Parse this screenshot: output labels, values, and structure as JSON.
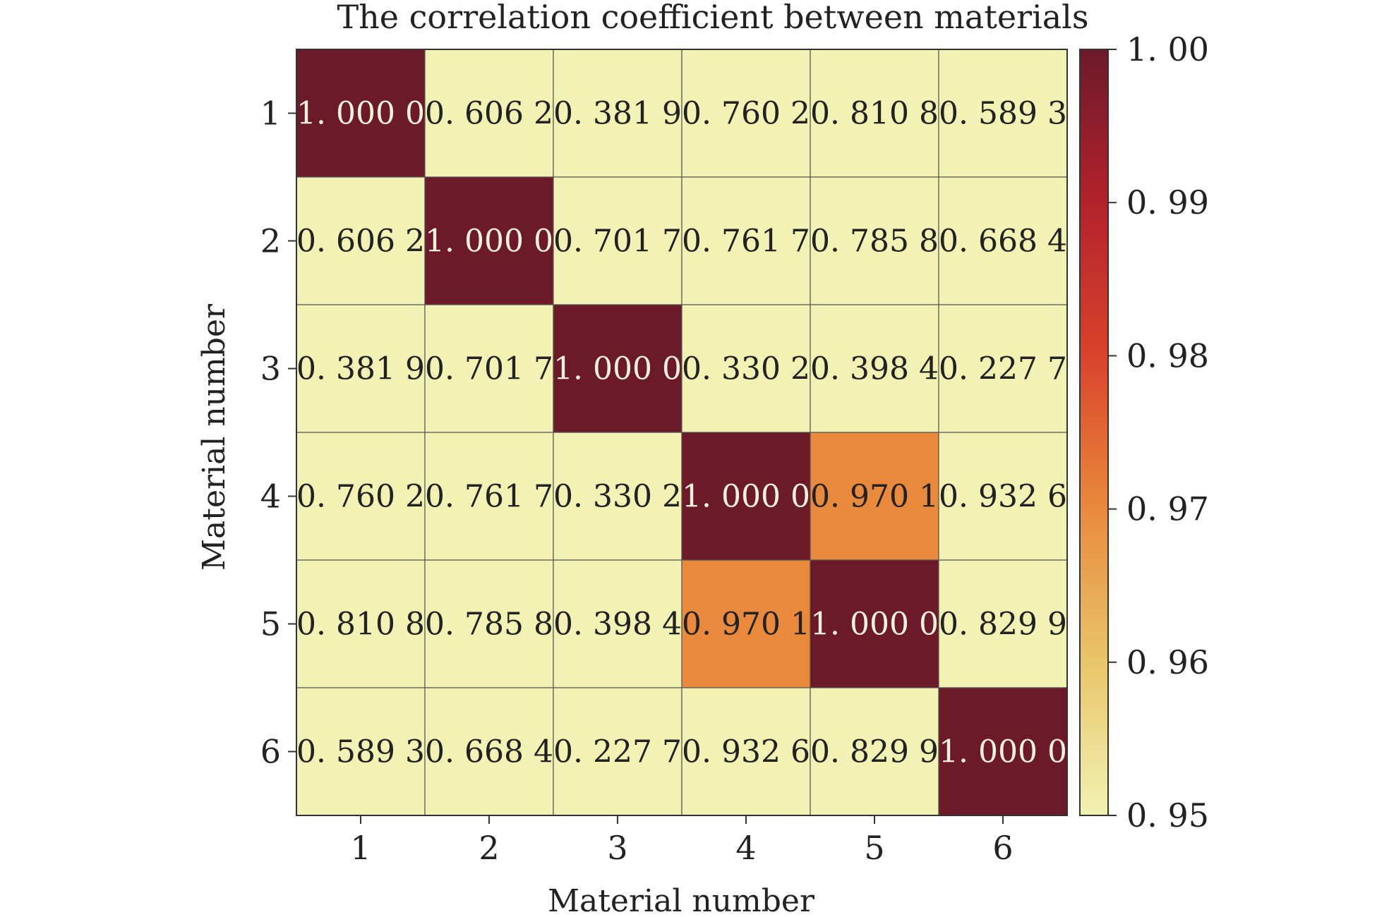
{
  "chart_data": {
    "type": "heatmap",
    "title": "The correlation coefficient between materials",
    "xlabel": "Material number",
    "ylabel": "Material number",
    "x_categories": [
      "1",
      "2",
      "3",
      "4",
      "5",
      "6"
    ],
    "y_categories": [
      "1",
      "2",
      "3",
      "4",
      "5",
      "6"
    ],
    "values": [
      [
        1.0,
        0.6062,
        0.3819,
        0.7602,
        0.8108,
        0.5893
      ],
      [
        0.6062,
        1.0,
        0.7017,
        0.7617,
        0.7858,
        0.6684
      ],
      [
        0.3819,
        0.7017,
        1.0,
        0.3302,
        0.3984,
        0.2277
      ],
      [
        0.7602,
        0.7617,
        0.3302,
        1.0,
        0.9701,
        0.9326
      ],
      [
        0.8108,
        0.7858,
        0.3984,
        0.9701,
        1.0,
        0.8299
      ],
      [
        0.5893,
        0.6684,
        0.2277,
        0.9326,
        0.8299,
        1.0
      ]
    ],
    "cell_labels": [
      [
        "1. 000 0",
        "0. 606 2",
        "0. 381 9",
        "0. 760 2",
        "0. 810 8",
        "0. 589 3"
      ],
      [
        "0. 606 2",
        "1. 000 0",
        "0. 701 7",
        "0. 761 7",
        "0. 785 8",
        "0. 668 4"
      ],
      [
        "0. 381 9",
        "0. 701 7",
        "1. 000 0",
        "0. 330 2",
        "0. 398 4",
        "0. 227 7"
      ],
      [
        "0. 760 2",
        "0. 761 7",
        "0. 330 2",
        "1. 000 0",
        "0. 970 1",
        "0. 932 6"
      ],
      [
        "0. 810 8",
        "0. 785 8",
        "0. 398 4",
        "0. 970 1",
        "1. 000 0",
        "0. 829 9"
      ],
      [
        "0. 589 3",
        "0. 668 4",
        "0. 227 7",
        "0. 932 6",
        "0. 829 9",
        "1. 000 0"
      ]
    ],
    "colorbar": {
      "min": 0.95,
      "max": 1.0,
      "ticks": [
        0.95,
        0.96,
        0.97,
        0.98,
        0.99,
        1.0
      ],
      "tick_labels": [
        "0. 95",
        "0. 96",
        "0. 97",
        "0. 98",
        "0. 99",
        "1. 00"
      ],
      "colors": [
        "#f1f2b3",
        "#e9c56a",
        "#e98a3c",
        "#d9432b",
        "#b3222c",
        "#6c1a2a"
      ],
      "position": "right"
    },
    "grid": true,
    "grid_color": "#555555",
    "text_color_light": "#f4f1de",
    "text_color_dark": "#222222"
  }
}
